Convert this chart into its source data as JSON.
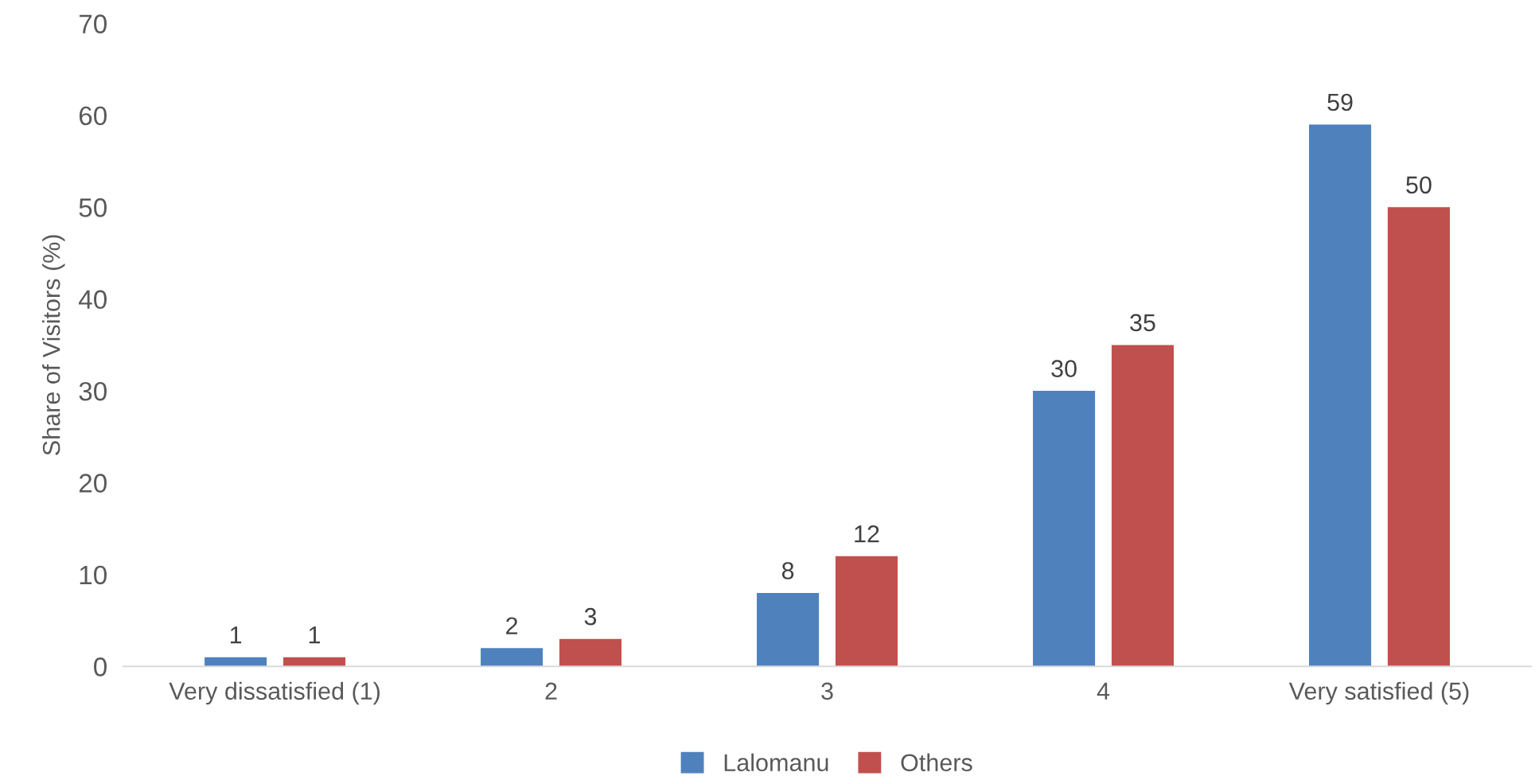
{
  "chart_data": {
    "type": "bar",
    "ylabel": "Share of Visitors (%)",
    "categories": [
      "Very dissatisfied (1)",
      "2",
      "3",
      "4",
      "Very satisfied (5)"
    ],
    "series": [
      {
        "name": "Lalomanu",
        "color": "#4f81bd",
        "values": [
          1,
          2,
          8,
          30,
          59
        ]
      },
      {
        "name": "Others",
        "color": "#c0504d",
        "values": [
          1,
          3,
          12,
          35,
          50
        ]
      }
    ],
    "ylim": [
      0,
      70
    ],
    "yticks": [
      0,
      10,
      20,
      30,
      40,
      50,
      60,
      70
    ],
    "grid": false,
    "legend": "bottom",
    "data_labels": true
  }
}
